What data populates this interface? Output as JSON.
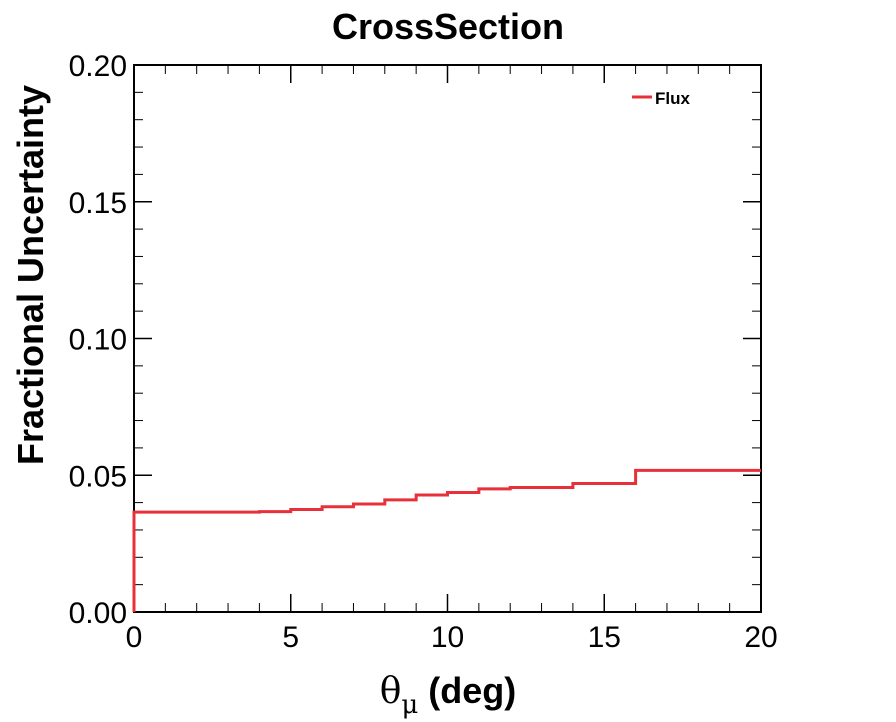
{
  "chart_data": {
    "type": "line",
    "title": "CrossSection",
    "xlabel_symbol": "θ",
    "xlabel_subscript": "μ",
    "xlabel_unit": " (deg)",
    "ylabel": "Fractional Uncertainty",
    "xlim": [
      0,
      20
    ],
    "ylim": [
      0,
      0.2
    ],
    "x_ticks": [
      "0",
      "5",
      "10",
      "15",
      "20"
    ],
    "y_ticks": [
      "0.00",
      "0.05",
      "0.10",
      "0.15",
      "0.20"
    ],
    "grid": false,
    "legend_position": "top-right",
    "series": [
      {
        "name": "Flux",
        "color": "#e8303a",
        "style": "step",
        "bin_edges": [
          0,
          1,
          2,
          3,
          4,
          5,
          6,
          7,
          8,
          9,
          10,
          11,
          12,
          14,
          16,
          20
        ],
        "values": [
          0.0365,
          0.0365,
          0.0365,
          0.0365,
          0.0367,
          0.0375,
          0.0385,
          0.0395,
          0.041,
          0.0428,
          0.0437,
          0.045,
          0.0455,
          0.047,
          0.0518
        ]
      }
    ]
  }
}
